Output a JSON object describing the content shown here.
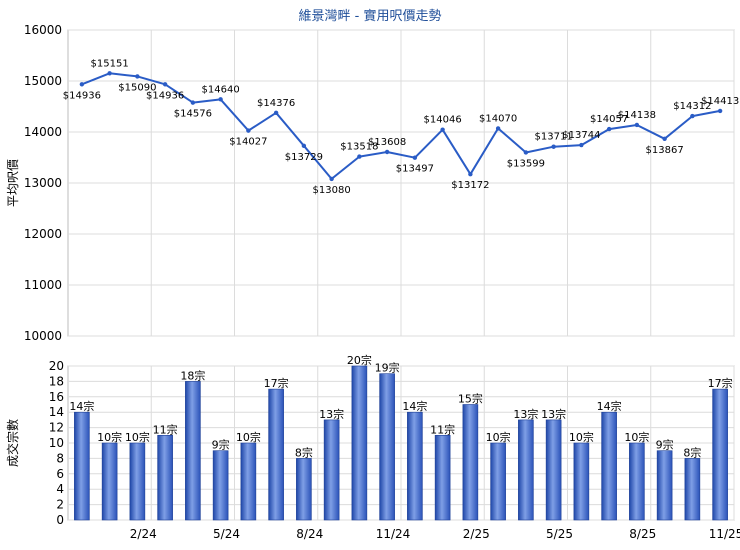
{
  "chart_data": [
    {
      "type": "line",
      "title": "維景灣畔 - 實用呎價走勢",
      "ylabel": "平均呎價",
      "ylim": [
        10000,
        16000
      ],
      "yticks": [
        10000,
        11000,
        12000,
        13000,
        14000,
        15000,
        16000
      ],
      "grid": true,
      "color": "#2a5cc6",
      "values": [
        14936,
        15151,
        15090,
        14936,
        14576,
        14640,
        14027,
        14376,
        13729,
        13080,
        13518,
        13608,
        13497,
        14046,
        13172,
        14070,
        13599,
        13711,
        13744,
        14057,
        14138,
        13867,
        14312,
        14413
      ],
      "labels": [
        "$14936",
        "$15151",
        "$15090",
        "$14936",
        "$14576",
        "$14640",
        "$14027",
        "$14376",
        "$13729",
        "$13080",
        "$13518",
        "$13608",
        "$13497",
        "$14046",
        "$13172",
        "$14070",
        "$13599",
        "$13711",
        "$13744",
        "$14057",
        "$14138",
        "$13867",
        "$14312",
        "$14413"
      ]
    },
    {
      "type": "bar",
      "ylabel": "成交宗數",
      "ylim": [
        0,
        20
      ],
      "yticks": [
        0,
        2,
        4,
        6,
        8,
        10,
        12,
        14,
        16,
        18,
        20
      ],
      "grid": true,
      "color": "#3a63c9",
      "values": [
        14,
        10,
        10,
        11,
        18,
        9,
        10,
        17,
        8,
        13,
        20,
        19,
        14,
        11,
        15,
        10,
        13,
        13,
        10,
        14,
        10,
        9,
        8,
        17
      ],
      "labels": [
        "14宗",
        "10宗",
        "10宗",
        "11宗",
        "18宗",
        "9宗",
        "10宗",
        "17宗",
        "8宗",
        "13宗",
        "20宗",
        "19宗",
        "14宗",
        "11宗",
        "15宗",
        "10宗",
        "13宗",
        "13宗",
        "10宗",
        "14宗",
        "10宗",
        "9宗",
        "8宗",
        "17宗"
      ],
      "xticks": [
        {
          "index": 2,
          "label": "2/24"
        },
        {
          "index": 5,
          "label": "5/24"
        },
        {
          "index": 8,
          "label": "8/24"
        },
        {
          "index": 11,
          "label": "11/24"
        },
        {
          "index": 14,
          "label": "2/25"
        },
        {
          "index": 17,
          "label": "5/25"
        },
        {
          "index": 20,
          "label": "8/25"
        },
        {
          "index": 23,
          "label": "11/25"
        }
      ]
    }
  ]
}
